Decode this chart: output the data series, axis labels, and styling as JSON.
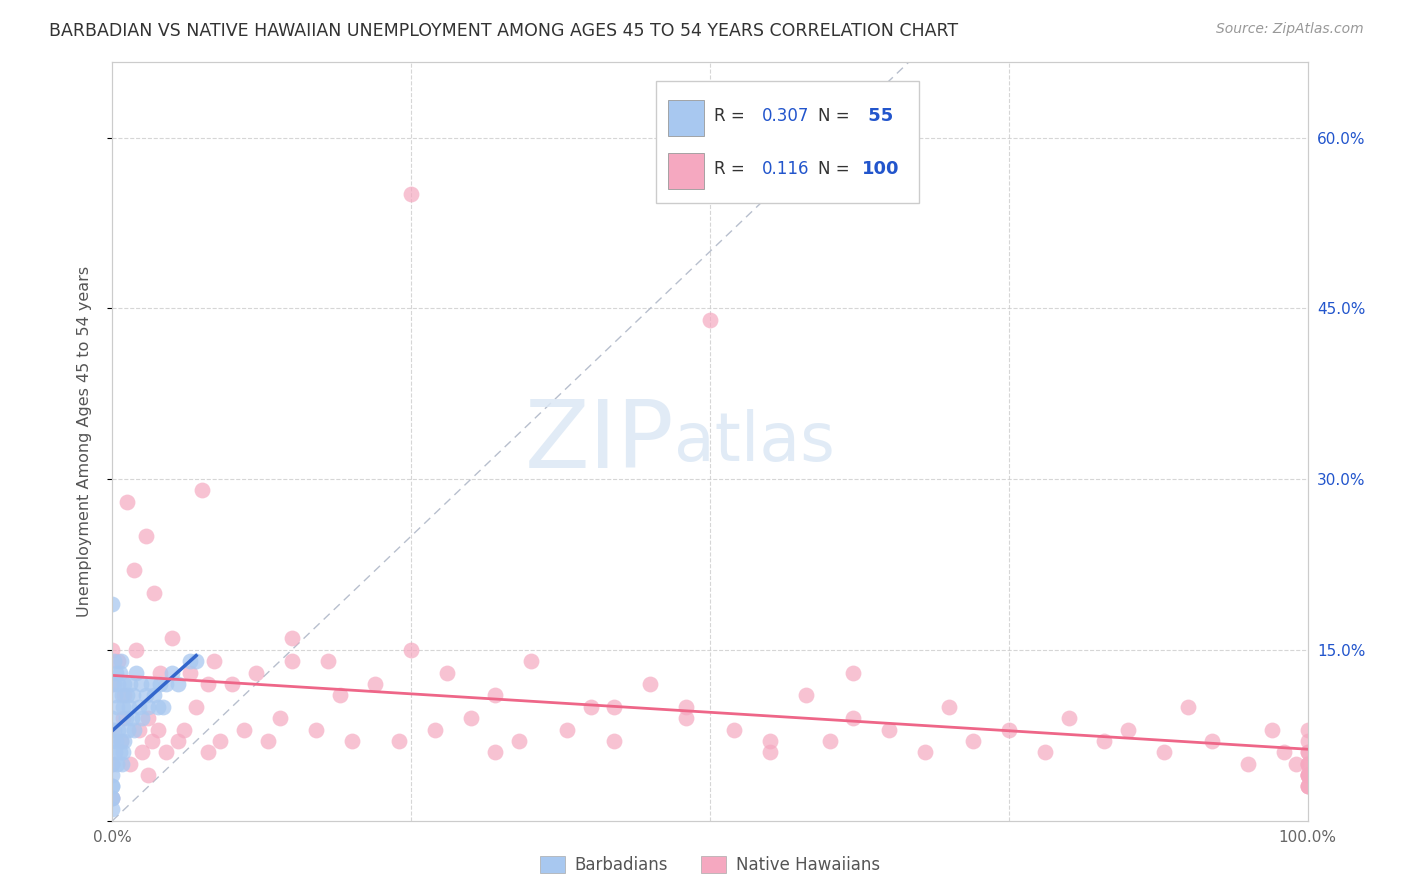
{
  "title": "BARBADIAN VS NATIVE HAWAIIAN UNEMPLOYMENT AMONG AGES 45 TO 54 YEARS CORRELATION CHART",
  "source": "Source: ZipAtlas.com",
  "ylabel": "Unemployment Among Ages 45 to 54 years",
  "xlim": [
    0,
    1.0
  ],
  "ylim": [
    0,
    0.666
  ],
  "grid_color": "#cccccc",
  "background_color": "#ffffff",
  "barbadian_color": "#a8c8f0",
  "native_hawaiian_color": "#f5a8c0",
  "barbadian_R": 0.307,
  "barbadian_N": 55,
  "native_hawaiian_R": 0.116,
  "native_hawaiian_N": 100,
  "legend_color": "#2255cc",
  "trend_blue_color": "#3366cc",
  "trend_pink_color": "#ee6688",
  "ref_line_color": "#b0b8c8",
  "watermark_zip": "ZIP",
  "watermark_atlas": "atlas",
  "barb_x": [
    0.0,
    0.0,
    0.0,
    0.0,
    0.0,
    0.0,
    0.0,
    0.0,
    0.0,
    0.0,
    0.001,
    0.001,
    0.001,
    0.002,
    0.002,
    0.003,
    0.003,
    0.004,
    0.004,
    0.005,
    0.005,
    0.006,
    0.006,
    0.007,
    0.007,
    0.008,
    0.008,
    0.009,
    0.009,
    0.01,
    0.01,
    0.011,
    0.012,
    0.013,
    0.014,
    0.015,
    0.016,
    0.017,
    0.018,
    0.02,
    0.022,
    0.024,
    0.025,
    0.028,
    0.03,
    0.032,
    0.035,
    0.038,
    0.04,
    0.042,
    0.045,
    0.05,
    0.055,
    0.065,
    0.07
  ],
  "barb_y": [
    0.19,
    0.09,
    0.07,
    0.05,
    0.04,
    0.03,
    0.03,
    0.02,
    0.02,
    0.01,
    0.14,
    0.12,
    0.08,
    0.11,
    0.06,
    0.13,
    0.07,
    0.1,
    0.05,
    0.12,
    0.08,
    0.13,
    0.06,
    0.14,
    0.07,
    0.11,
    0.05,
    0.1,
    0.06,
    0.12,
    0.07,
    0.09,
    0.11,
    0.08,
    0.1,
    0.12,
    0.09,
    0.11,
    0.08,
    0.13,
    0.1,
    0.12,
    0.09,
    0.11,
    0.1,
    0.12,
    0.11,
    0.1,
    0.12,
    0.1,
    0.12,
    0.13,
    0.12,
    0.14,
    0.14
  ],
  "hawaii_x": [
    0.0,
    0.0,
    0.0,
    0.0,
    0.0,
    0.005,
    0.007,
    0.009,
    0.01,
    0.012,
    0.015,
    0.018,
    0.02,
    0.022,
    0.025,
    0.028,
    0.03,
    0.033,
    0.035,
    0.038,
    0.04,
    0.045,
    0.05,
    0.055,
    0.06,
    0.065,
    0.07,
    0.075,
    0.08,
    0.085,
    0.09,
    0.1,
    0.11,
    0.12,
    0.13,
    0.14,
    0.15,
    0.17,
    0.19,
    0.2,
    0.22,
    0.24,
    0.25,
    0.27,
    0.28,
    0.3,
    0.32,
    0.34,
    0.35,
    0.38,
    0.4,
    0.42,
    0.45,
    0.48,
    0.5,
    0.52,
    0.55,
    0.58,
    0.6,
    0.62,
    0.65,
    0.68,
    0.7,
    0.72,
    0.75,
    0.78,
    0.8,
    0.83,
    0.85,
    0.88,
    0.9,
    0.92,
    0.95,
    0.97,
    0.98,
    0.99,
    1.0,
    1.0,
    1.0,
    1.0,
    1.0,
    1.0,
    1.0,
    1.0,
    1.0,
    1.0,
    1.0,
    1.0,
    1.0,
    1.0,
    0.25,
    0.62,
    0.15,
    0.08,
    0.03,
    0.55,
    0.48,
    0.32,
    0.18,
    0.42
  ],
  "hawaii_y": [
    0.15,
    0.12,
    0.08,
    0.05,
    0.02,
    0.14,
    0.07,
    0.09,
    0.11,
    0.28,
    0.05,
    0.22,
    0.15,
    0.08,
    0.06,
    0.25,
    0.09,
    0.07,
    0.2,
    0.08,
    0.13,
    0.06,
    0.16,
    0.07,
    0.08,
    0.13,
    0.1,
    0.29,
    0.06,
    0.14,
    0.07,
    0.12,
    0.08,
    0.13,
    0.07,
    0.09,
    0.14,
    0.08,
    0.11,
    0.07,
    0.12,
    0.07,
    0.55,
    0.08,
    0.13,
    0.09,
    0.11,
    0.07,
    0.14,
    0.08,
    0.1,
    0.07,
    0.12,
    0.1,
    0.44,
    0.08,
    0.06,
    0.11,
    0.07,
    0.09,
    0.08,
    0.06,
    0.1,
    0.07,
    0.08,
    0.06,
    0.09,
    0.07,
    0.08,
    0.06,
    0.1,
    0.07,
    0.05,
    0.08,
    0.06,
    0.05,
    0.08,
    0.06,
    0.05,
    0.04,
    0.07,
    0.05,
    0.04,
    0.03,
    0.06,
    0.04,
    0.03,
    0.05,
    0.04,
    0.03,
    0.15,
    0.13,
    0.16,
    0.12,
    0.04,
    0.07,
    0.09,
    0.06,
    0.14,
    0.1
  ]
}
